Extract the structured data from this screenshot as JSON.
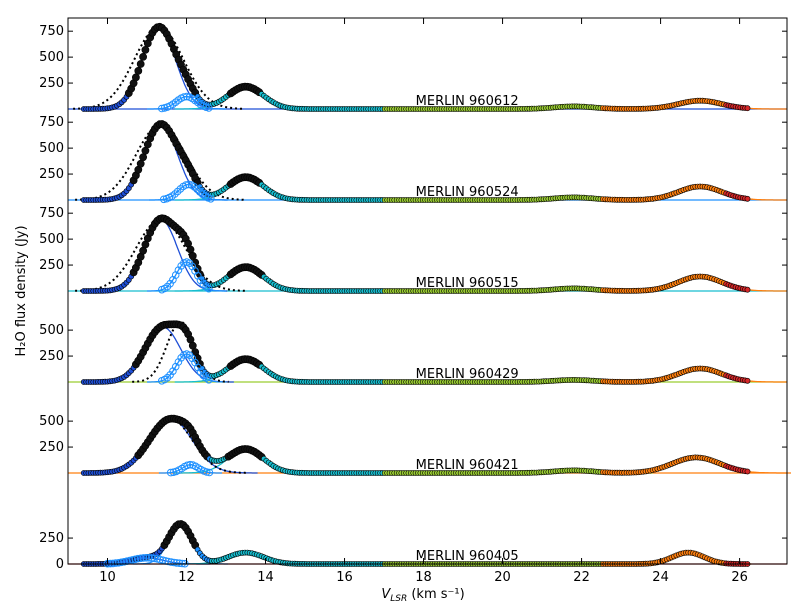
{
  "chart_data": {
    "type": "line",
    "title": "",
    "ylabel": "H₂O flux density (Jy)",
    "xlabel": "V",
    "xlabel_sub": "LSR",
    "xlabel_units": " (km s⁻¹)",
    "xlim": [
      9.0,
      27.2
    ],
    "x_ticks": [
      "10",
      "12",
      "14",
      "16",
      "18",
      "20",
      "22",
      "24",
      "26"
    ],
    "x_tick_values": [
      10,
      12,
      14,
      16,
      18,
      20,
      22,
      24,
      26
    ],
    "panel_ylim": [
      0,
      800
    ],
    "panels": [
      {
        "label": "MERLIN 960612",
        "y_ticks": [
          "250",
          "500",
          "750"
        ],
        "y_tick_values": [
          250,
          500,
          750
        ],
        "components": [
          [
            11.3,
            790,
            0.42
          ],
          [
            12.0,
            120,
            0.25
          ],
          [
            13.5,
            215,
            0.45
          ],
          [
            21.8,
            25,
            0.5
          ],
          [
            25.0,
            80,
            0.55
          ]
        ],
        "dotted": [
          11.3,
          790,
          0.62
        ]
      },
      {
        "label": "MERLIN 960524",
        "y_ticks": [
          "250",
          "500",
          "750"
        ],
        "y_tick_values": [
          250,
          500,
          750
        ],
        "components": [
          [
            11.35,
            730,
            0.42
          ],
          [
            12.05,
            150,
            0.25
          ],
          [
            13.5,
            220,
            0.45
          ],
          [
            21.8,
            25,
            0.5
          ],
          [
            25.0,
            130,
            0.55
          ]
        ],
        "dotted": [
          11.35,
          730,
          0.62
        ]
      },
      {
        "label": "MERLIN 960515",
        "y_ticks": [
          "250",
          "500",
          "750"
        ],
        "y_tick_values": [
          250,
          500,
          750
        ],
        "components": [
          [
            11.35,
            690,
            0.42
          ],
          [
            12.0,
            280,
            0.25
          ],
          [
            13.5,
            230,
            0.45
          ],
          [
            21.8,
            25,
            0.5
          ],
          [
            25.0,
            140,
            0.55
          ]
        ],
        "dotted": [
          11.35,
          690,
          0.62
        ]
      },
      {
        "label": "MERLIN 960429",
        "y_ticks": [
          "250",
          "500"
        ],
        "y_tick_values": [
          250,
          500
        ],
        "components": [
          [
            11.4,
            530,
            0.45
          ],
          [
            12.0,
            270,
            0.25
          ],
          [
            13.5,
            220,
            0.45
          ],
          [
            21.8,
            20,
            0.5
          ],
          [
            25.0,
            130,
            0.55
          ]
        ],
        "dotted": [
          11.85,
          580,
          0.35
        ]
      },
      {
        "label": "MERLIN 960421",
        "y_ticks": [
          "250",
          "500"
        ],
        "y_tick_values": [
          250,
          500
        ],
        "components": [
          [
            11.6,
            520,
            0.55
          ],
          [
            12.1,
            80,
            0.2
          ],
          [
            13.5,
            230,
            0.45
          ],
          [
            21.8,
            25,
            0.5
          ],
          [
            24.9,
            150,
            0.6
          ]
        ],
        "dotted": [
          11.6,
          520,
          0.55
        ]
      },
      {
        "label": "MERLIN 960405",
        "y_ticks": [
          "0",
          "250"
        ],
        "y_tick_values": [
          0,
          250
        ],
        "components": [
          [
            11.85,
            380,
            0.3
          ],
          [
            11.0,
            60,
            0.4
          ],
          [
            13.5,
            110,
            0.45
          ],
          [
            24.7,
            110,
            0.4
          ]
        ],
        "dotted": null
      }
    ]
  }
}
